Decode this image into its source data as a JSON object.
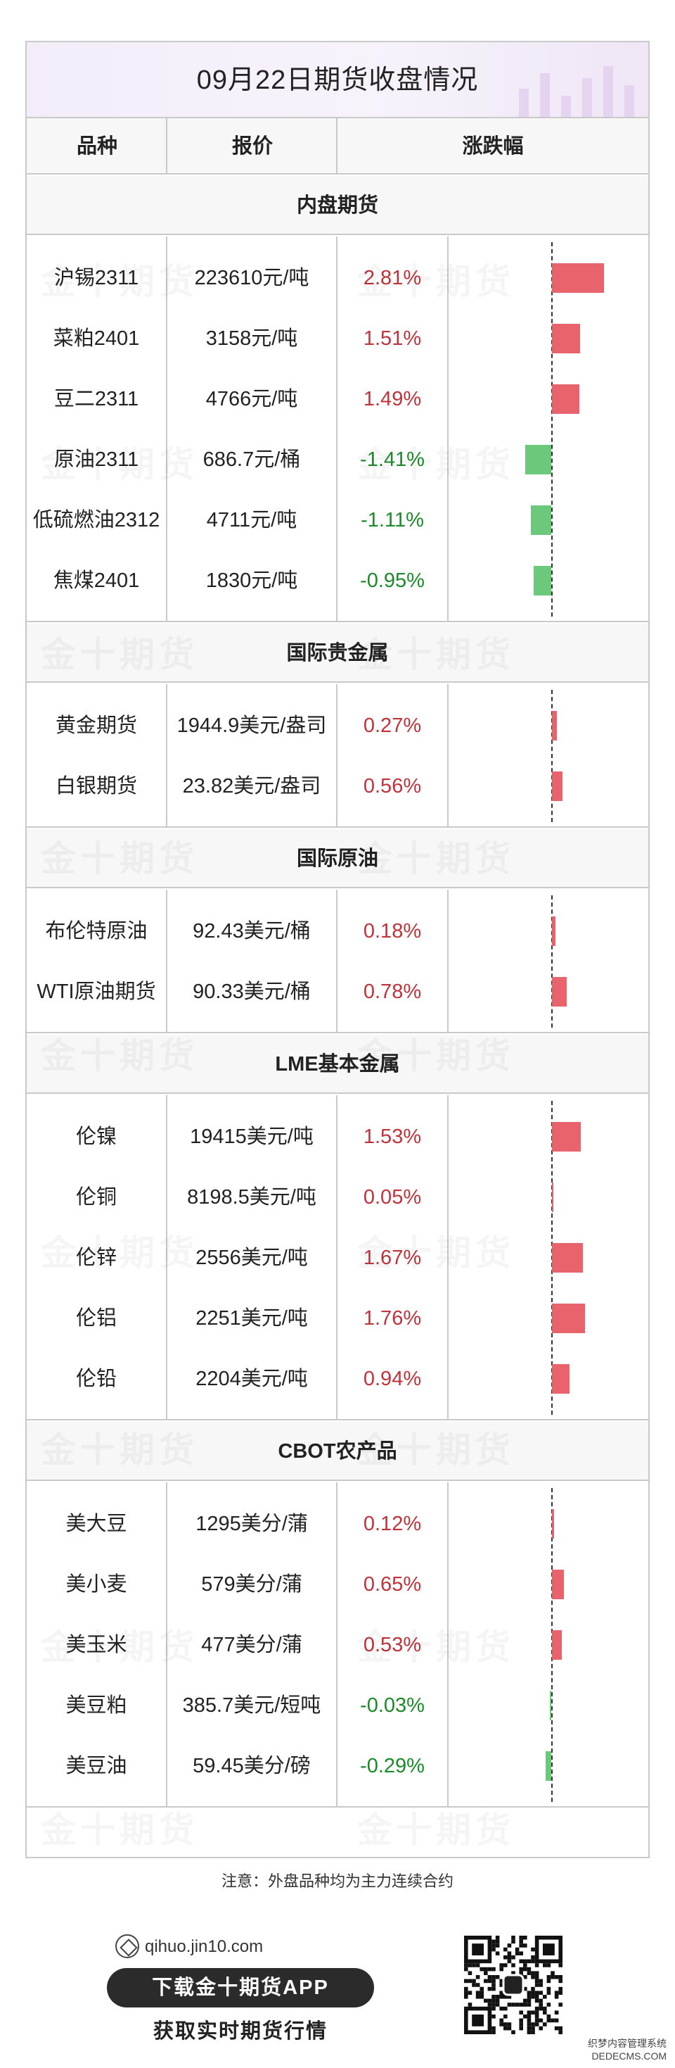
{
  "title": "09月22日期货收盘情况",
  "columns": [
    "品种",
    "报价",
    "涨跌幅"
  ],
  "note": "注意：外盘品种均为主力连续合约",
  "footer": {
    "site": "qihuo.jin10.com",
    "download_label": "下载金十期货APP",
    "subtitle": "获取实时期货行情"
  },
  "watermark_text": "金十期货",
  "brand_mark": [
    "织梦内容管理系统",
    "DEDECMS.COM"
  ],
  "colors": {
    "up": "#e8636b",
    "down": "#6cc97b",
    "up_text": "#c0333b",
    "down_text": "#1d8a2a"
  },
  "chart_data": {
    "type": "bar",
    "orientation": "horizontal",
    "unit": "%",
    "sections": [
      {
        "name": "内盘期货",
        "items": [
          {
            "name": "沪锡2311",
            "price": "223610元/吨",
            "change": 2.81,
            "change_label": "2.81%"
          },
          {
            "name": "菜粕2401",
            "price": "3158元/吨",
            "change": 1.51,
            "change_label": "1.51%"
          },
          {
            "name": "豆二2311",
            "price": "4766元/吨",
            "change": 1.49,
            "change_label": "1.49%"
          },
          {
            "name": "原油2311",
            "price": "686.7元/桶",
            "change": -1.41,
            "change_label": "-1.41%"
          },
          {
            "name": "低硫燃油2312",
            "price": "4711元/吨",
            "change": -1.11,
            "change_label": "-1.11%"
          },
          {
            "name": "焦煤2401",
            "price": "1830元/吨",
            "change": -0.95,
            "change_label": "-0.95%"
          }
        ]
      },
      {
        "name": "国际贵金属",
        "items": [
          {
            "name": "黄金期货",
            "price": "1944.9美元/盎司",
            "change": 0.27,
            "change_label": "0.27%"
          },
          {
            "name": "白银期货",
            "price": "23.82美元/盎司",
            "change": 0.56,
            "change_label": "0.56%"
          }
        ]
      },
      {
        "name": "国际原油",
        "items": [
          {
            "name": "布伦特原油",
            "price": "92.43美元/桶",
            "change": 0.18,
            "change_label": "0.18%"
          },
          {
            "name": "WTI原油期货",
            "price": "90.33美元/桶",
            "change": 0.78,
            "change_label": "0.78%"
          }
        ]
      },
      {
        "name": "LME基本金属",
        "items": [
          {
            "name": "伦镍",
            "price": "19415美元/吨",
            "change": 1.53,
            "change_label": "1.53%"
          },
          {
            "name": "伦铜",
            "price": "8198.5美元/吨",
            "change": 0.05,
            "change_label": "0.05%"
          },
          {
            "name": "伦锌",
            "price": "2556美元/吨",
            "change": 1.67,
            "change_label": "1.67%"
          },
          {
            "name": "伦铝",
            "price": "2251美元/吨",
            "change": 1.76,
            "change_label": "1.76%"
          },
          {
            "name": "伦铅",
            "price": "2204美元/吨",
            "change": 0.94,
            "change_label": "0.94%"
          }
        ]
      },
      {
        "name": "CBOT农产品",
        "items": [
          {
            "name": "美大豆",
            "price": "1295美分/蒲",
            "change": 0.12,
            "change_label": "0.12%"
          },
          {
            "name": "美小麦",
            "price": "579美分/蒲",
            "change": 0.65,
            "change_label": "0.65%"
          },
          {
            "name": "美玉米",
            "price": "477美分/蒲",
            "change": 0.53,
            "change_label": "0.53%"
          },
          {
            "name": "美豆粕",
            "price": "385.7美元/短吨",
            "change": -0.03,
            "change_label": "-0.03%"
          },
          {
            "name": "美豆油",
            "price": "59.45美分/磅",
            "change": -0.29,
            "change_label": "-0.29%"
          }
        ]
      }
    ]
  }
}
